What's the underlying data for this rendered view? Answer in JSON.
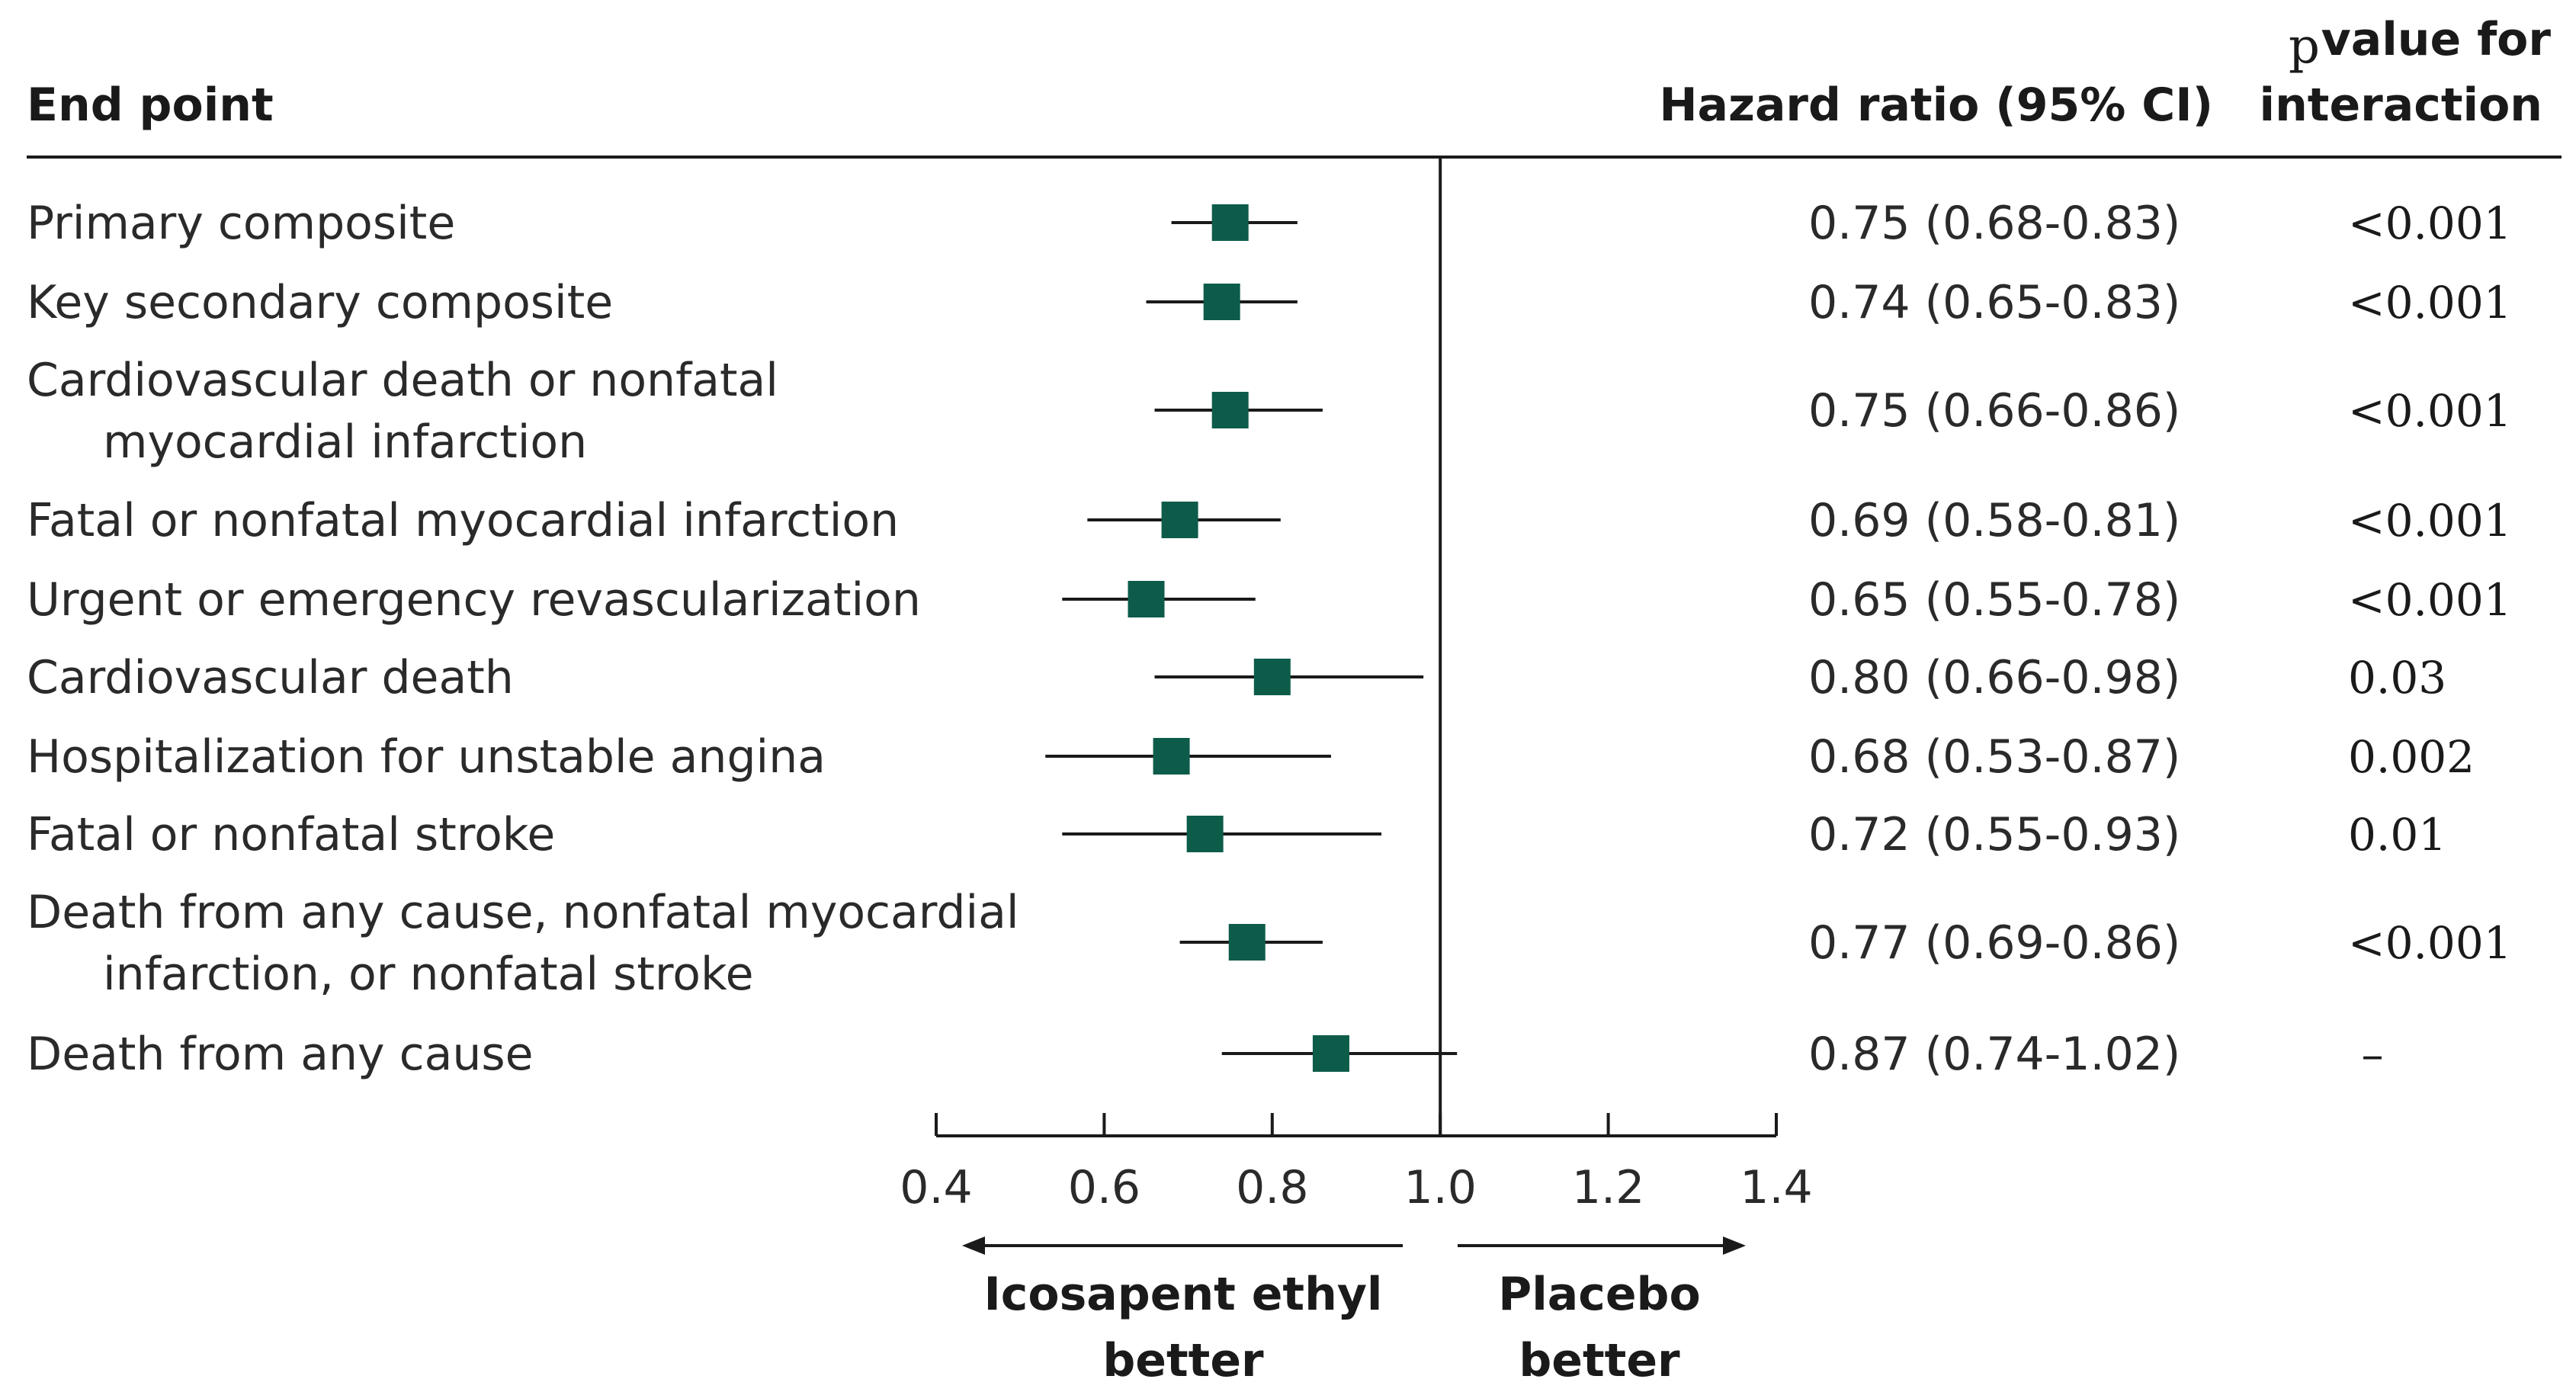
{
  "chart_data": {
    "type": "forest",
    "headers": {
      "end_point": "End point",
      "hazard_ratio": "Hazard ratio (95% CI)",
      "p_value_p": "p",
      "p_value_line1": "value for",
      "p_value_line2": "interaction"
    },
    "rows": [
      {
        "label": [
          "Primary composite"
        ],
        "hr": 0.75,
        "lo": 0.68,
        "hi": 0.83,
        "text": "0.75 (0.68-0.83)",
        "p": "<0.001"
      },
      {
        "label": [
          "Key secondary composite"
        ],
        "hr": 0.74,
        "lo": 0.65,
        "hi": 0.83,
        "text": "0.74 (0.65-0.83)",
        "p": "<0.001"
      },
      {
        "label": [
          "Cardiovascular death or nonfatal",
          "myocardial infarction"
        ],
        "hr": 0.75,
        "lo": 0.66,
        "hi": 0.86,
        "text": "0.75 (0.66-0.86)",
        "p": "<0.001"
      },
      {
        "label": [
          "Fatal or nonfatal myocardial infarction"
        ],
        "hr": 0.69,
        "lo": 0.58,
        "hi": 0.81,
        "text": "0.69 (0.58-0.81)",
        "p": "<0.001"
      },
      {
        "label": [
          "Urgent or emergency revascularization"
        ],
        "hr": 0.65,
        "lo": 0.55,
        "hi": 0.78,
        "text": "0.65 (0.55-0.78)",
        "p": "<0.001"
      },
      {
        "label": [
          "Cardiovascular death"
        ],
        "hr": 0.8,
        "lo": 0.66,
        "hi": 0.98,
        "text": "0.80 (0.66-0.98)",
        "p": "0.03"
      },
      {
        "label": [
          "Hospitalization for unstable angina"
        ],
        "hr": 0.68,
        "lo": 0.53,
        "hi": 0.87,
        "text": "0.68 (0.53-0.87)",
        "p": "0.002"
      },
      {
        "label": [
          "Fatal or nonfatal stroke"
        ],
        "hr": 0.72,
        "lo": 0.55,
        "hi": 0.93,
        "text": "0.72 (0.55-0.93)",
        "p": "0.01"
      },
      {
        "label": [
          "Death from any cause, nonfatal myocardial",
          "infarction, or nonfatal stroke"
        ],
        "hr": 0.77,
        "lo": 0.69,
        "hi": 0.86,
        "text": "0.77 (0.69-0.86)",
        "p": "<0.001"
      },
      {
        "label": [
          "Death from any cause"
        ],
        "hr": 0.87,
        "lo": 0.74,
        "hi": 1.02,
        "text": "0.87 (0.74-1.02)",
        "p": "–"
      }
    ],
    "x_axis": {
      "range": [
        0.4,
        1.4
      ],
      "ticks": [
        0.4,
        0.6,
        0.8,
        1.0,
        1.2,
        1.4
      ],
      "tick_labels": [
        "0.4",
        "0.6",
        "0.8",
        "1.0",
        "1.2",
        "1.4"
      ],
      "reference": 1.0
    },
    "direction_labels": {
      "left": [
        "Icosapent ethyl",
        "better"
      ],
      "right": [
        "Placebo",
        "better"
      ]
    },
    "colors": {
      "point": "#0d5c4a",
      "line": "#1a1a1a"
    }
  }
}
